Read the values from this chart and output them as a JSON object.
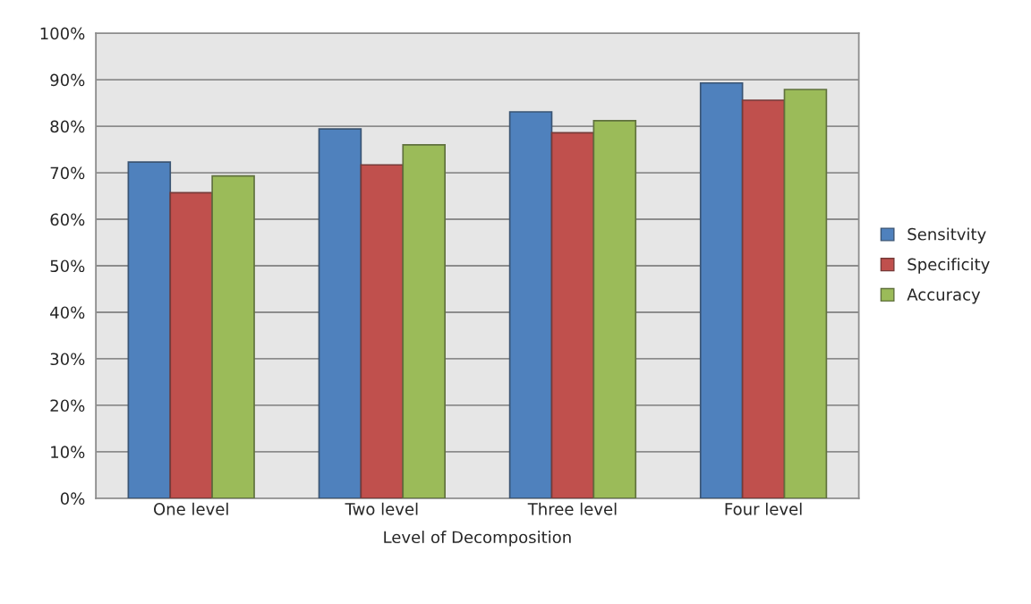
{
  "chart_data": {
    "type": "bar",
    "xlabel": "Level of Decomposition",
    "categories": [
      "One level",
      "Two level",
      "Three level",
      "Four level"
    ],
    "series": [
      {
        "name": "Sensitvity",
        "color": "#4f81bd",
        "values": [
          72.3,
          79.4,
          83.1,
          89.3
        ]
      },
      {
        "name": "Specificity",
        "color": "#c0504d",
        "values": [
          65.7,
          71.7,
          78.6,
          85.6
        ]
      },
      {
        "name": "Accuracy",
        "color": "#9bbb59",
        "values": [
          69.3,
          76.0,
          81.2,
          87.9
        ]
      }
    ],
    "ylim": [
      0,
      100
    ],
    "yticks": [
      {
        "value": 0,
        "label": "0%"
      },
      {
        "value": 10,
        "label": "10%"
      },
      {
        "value": 20,
        "label": "20%"
      },
      {
        "value": 30,
        "label": "30%"
      },
      {
        "value": 40,
        "label": "40%"
      },
      {
        "value": 50,
        "label": "50%"
      },
      {
        "value": 60,
        "label": "60%"
      },
      {
        "value": 70,
        "label": "70%"
      },
      {
        "value": 80,
        "label": "80%"
      },
      {
        "value": 90,
        "label": "90%"
      },
      {
        "value": 100,
        "label": "100%"
      }
    ],
    "grid": "y",
    "legend": "right"
  }
}
